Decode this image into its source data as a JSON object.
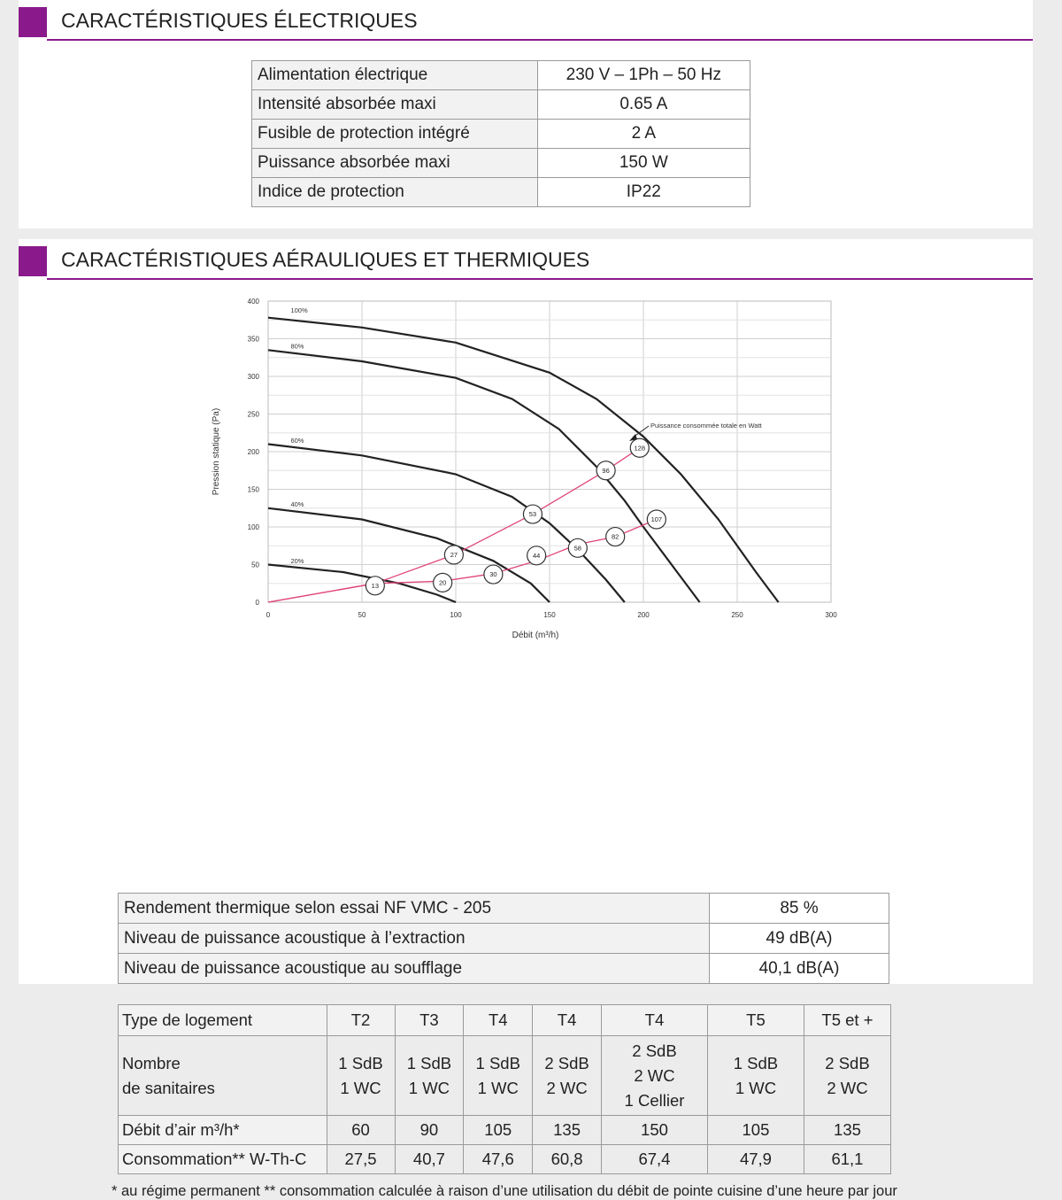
{
  "section_electric": {
    "title": "CARACTÉRISTIQUES ÉLECTRIQUES"
  },
  "electric_rows": [
    {
      "label": "Alimentation électrique",
      "value": "230 V – 1Ph – 50 Hz"
    },
    {
      "label": "Intensité absorbée maxi",
      "value": "0.65 A"
    },
    {
      "label": "Fusible de protection intégré",
      "value": "2 A"
    },
    {
      "label": "Puissance absorbée maxi",
      "value": "150 W"
    },
    {
      "label": "Indice de protection",
      "value": "IP22"
    }
  ],
  "section_aero": {
    "title": "CARACTÉRISTIQUES AÉRAULIQUES ET THERMIQUES"
  },
  "chart_data": {
    "type": "line",
    "title": "",
    "xlabel": "Débit (m³/h)",
    "ylabel": "Pression statique (Pa)",
    "xlim": [
      0,
      300
    ],
    "ylim": [
      0,
      400
    ],
    "x_ticks": [
      "0",
      "50",
      "100",
      "150",
      "200",
      "250",
      "300"
    ],
    "y_ticks": [
      "0",
      "50",
      "100",
      "150",
      "200",
      "250",
      "300",
      "350",
      "400"
    ],
    "grid": true,
    "annotation": "Puissance consommée totale en Watt",
    "series": [
      {
        "name": "100%",
        "color": "#222222",
        "points": [
          [
            0,
            378
          ],
          [
            50,
            365
          ],
          [
            100,
            345
          ],
          [
            150,
            305
          ],
          [
            175,
            270
          ],
          [
            200,
            220
          ],
          [
            220,
            170
          ],
          [
            240,
            110
          ],
          [
            260,
            40
          ],
          [
            272,
            0
          ]
        ]
      },
      {
        "name": "80%",
        "color": "#222222",
        "points": [
          [
            0,
            335
          ],
          [
            50,
            320
          ],
          [
            100,
            298
          ],
          [
            130,
            270
          ],
          [
            155,
            230
          ],
          [
            175,
            180
          ],
          [
            190,
            135
          ],
          [
            200,
            100
          ],
          [
            215,
            50
          ],
          [
            230,
            0
          ]
        ]
      },
      {
        "name": "60%",
        "color": "#222222",
        "points": [
          [
            0,
            210
          ],
          [
            50,
            195
          ],
          [
            100,
            170
          ],
          [
            130,
            140
          ],
          [
            150,
            105
          ],
          [
            165,
            70
          ],
          [
            180,
            30
          ],
          [
            190,
            0
          ]
        ]
      },
      {
        "name": "40%",
        "color": "#222222",
        "points": [
          [
            0,
            125
          ],
          [
            50,
            110
          ],
          [
            90,
            85
          ],
          [
            120,
            55
          ],
          [
            140,
            25
          ],
          [
            150,
            0
          ]
        ]
      },
      {
        "name": "20%",
        "color": "#222222",
        "points": [
          [
            0,
            50
          ],
          [
            40,
            40
          ],
          [
            70,
            25
          ],
          [
            90,
            10
          ],
          [
            100,
            0
          ]
        ]
      },
      {
        "name": "",
        "color": "#e0457b",
        "points": [
          [
            0,
            0
          ],
          [
            57,
            25
          ],
          [
            99,
            63
          ],
          [
            141,
            117
          ],
          [
            180,
            175
          ],
          [
            198,
            205
          ]
        ]
      },
      {
        "name": "",
        "color": "#e0457b",
        "points": [
          [
            0,
            0
          ],
          [
            57,
            25
          ],
          [
            93,
            28
          ],
          [
            120,
            38
          ],
          [
            143,
            55
          ],
          [
            165,
            77
          ],
          [
            185,
            87
          ],
          [
            207,
            110
          ]
        ]
      }
    ],
    "points_labels": [
      {
        "x": 57,
        "y": 22,
        "label": "13"
      },
      {
        "x": 99,
        "y": 63,
        "label": "27"
      },
      {
        "x": 141,
        "y": 117,
        "label": "53"
      },
      {
        "x": 180,
        "y": 175,
        "label": "96"
      },
      {
        "x": 198,
        "y": 205,
        "label": "128"
      },
      {
        "x": 93,
        "y": 26,
        "label": "20"
      },
      {
        "x": 120,
        "y": 37,
        "label": "30"
      },
      {
        "x": 143,
        "y": 62,
        "label": "44"
      },
      {
        "x": 165,
        "y": 72,
        "label": "58"
      },
      {
        "x": 185,
        "y": 87,
        "label": "82"
      },
      {
        "x": 207,
        "y": 110,
        "label": "107"
      }
    ],
    "curve_labels": [
      {
        "x": 12,
        "y": 385,
        "label": "100%"
      },
      {
        "x": 12,
        "y": 337,
        "label": "80%"
      },
      {
        "x": 12,
        "y": 212,
        "label": "60%"
      },
      {
        "x": 12,
        "y": 127,
        "label": "40%"
      },
      {
        "x": 12,
        "y": 52,
        "label": "20%"
      }
    ]
  },
  "rendement_rows": [
    {
      "label": "Rendement thermique selon essai NF VMC - 205",
      "value": "85 %"
    },
    {
      "label": "Niveau de puissance acoustique à l’extraction",
      "value": "49 dB(A)"
    },
    {
      "label": "Niveau de puissance acoustique au soufflage",
      "value": "40,1 dB(A)"
    }
  ],
  "logement": {
    "header_label": "Type de logement",
    "types": [
      "T2",
      "T3",
      "T4",
      "T4",
      "T4",
      "T5",
      "T5 et +"
    ],
    "sanitaires_label_1": "Nombre",
    "sanitaires_label_2": "de sanitaires",
    "sanitaires": [
      [
        "1 SdB",
        "1 WC"
      ],
      [
        "1 SdB",
        "1 WC"
      ],
      [
        "1 SdB",
        "1 WC"
      ],
      [
        "2 SdB",
        "2 WC"
      ],
      [
        "2 SdB",
        "2 WC",
        "1 Cellier"
      ],
      [
        "1 SdB",
        "1 WC"
      ],
      [
        "2 SdB",
        "2 WC"
      ]
    ],
    "debit_label": "Débit d’air m³/h*",
    "debit": [
      "60",
      "90",
      "105",
      "135",
      "150",
      "105",
      "135"
    ],
    "conso_label": "Consommation** W-Th-C",
    "conso": [
      "27,5",
      "40,7",
      "47,6",
      "60,8",
      "67,4",
      "47,9",
      "61,1"
    ]
  },
  "footnote": "* au régime permanent ** consommation calculée à raison d’une utilisation du débit de pointe cuisine d’une heure par jour"
}
